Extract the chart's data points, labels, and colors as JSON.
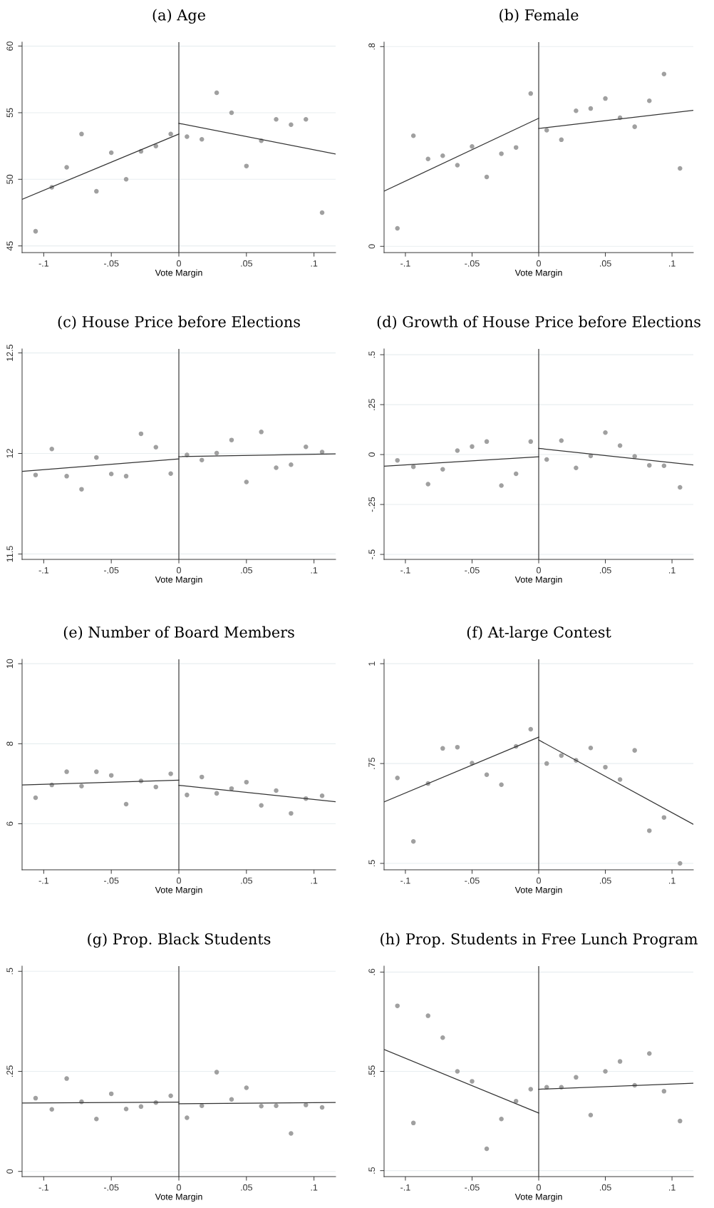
{
  "chart_data": [
    {
      "type": "scatter",
      "title": "(a) Age",
      "xlabel": "Vote Margin",
      "xlim": [
        -0.116,
        0.116
      ],
      "ylim": [
        44.5,
        60.3
      ],
      "xticks": [
        {
          "value": -0.1,
          "label": "-.1"
        },
        {
          "value": -0.05,
          "label": "-.05"
        },
        0,
        {
          "value": 0.05,
          "label": ".05"
        },
        {
          "value": 0.1,
          "label": ".1"
        }
      ],
      "yticks": [
        45,
        50,
        55,
        60
      ],
      "grid": "y",
      "ref_lines": [
        {
          "axis": "x",
          "value": 0,
          "label": null,
          "color": "#555555"
        }
      ],
      "series": [
        {
          "marker": "circle",
          "color": "#a0a0a0",
          "x": [
            -0.106,
            -0.094,
            -0.083,
            -0.072,
            -0.061,
            -0.05,
            -0.039,
            -0.028,
            -0.017,
            -0.006,
            0.006,
            0.017,
            0.028,
            0.039,
            0.05,
            0.061,
            0.072,
            0.083,
            0.094,
            0.106
          ],
          "values": [
            46.1,
            49.4,
            50.9,
            53.4,
            49.1,
            52.0,
            50.0,
            52.1,
            52.5,
            53.4,
            53.2,
            53.0,
            56.5,
            55.0,
            51.0,
            52.9,
            54.5,
            54.1,
            54.5,
            47.5
          ]
        },
        {
          "type": "line",
          "color": "#333333",
          "x": [
            -0.116,
            0
          ],
          "values": [
            48.5,
            53.4
          ]
        },
        {
          "type": "line",
          "color": "#333333",
          "x": [
            0,
            0.116
          ],
          "values": [
            54.2,
            51.9
          ]
        }
      ]
    },
    {
      "type": "scatter",
      "title": "(b) Female",
      "xlabel": "Vote Margin",
      "xlim": [
        -0.116,
        0.116
      ],
      "ylim": [
        -0.025,
        0.818
      ],
      "xticks": [
        {
          "value": -0.1,
          "label": "-.1"
        },
        {
          "value": -0.05,
          "label": "-.05"
        },
        0,
        {
          "value": 0.05,
          "label": ".05"
        },
        {
          "value": 0.1,
          "label": ".1"
        }
      ],
      "yticks": [
        0,
        {
          "value": 0.8,
          "label": ".8"
        }
      ],
      "grid": "y",
      "ref_lines": [
        {
          "axis": "x",
          "value": 0,
          "label": null,
          "color": "#555555"
        }
      ],
      "series": [
        {
          "marker": "circle",
          "color": "#a0a0a0",
          "x": [
            -0.106,
            -0.094,
            -0.083,
            -0.072,
            -0.061,
            -0.05,
            -0.039,
            -0.028,
            -0.017,
            -0.006,
            0.006,
            0.017,
            0.028,
            0.039,
            0.05,
            0.061,
            0.072,
            0.083,
            0.094,
            0.106
          ],
          "values": [
            0.072,
            0.443,
            0.35,
            0.363,
            0.325,
            0.4,
            0.278,
            0.371,
            0.396,
            0.612,
            0.465,
            0.427,
            0.543,
            0.552,
            0.592,
            0.515,
            0.479,
            0.583,
            0.69,
            0.312
          ]
        },
        {
          "type": "line",
          "color": "#333333",
          "x": [
            -0.116,
            0
          ],
          "values": [
            0.221,
            0.513
          ]
        },
        {
          "type": "line",
          "color": "#333333",
          "x": [
            0,
            0.116
          ],
          "values": [
            0.472,
            0.545
          ]
        }
      ]
    },
    {
      "type": "scatter",
      "title": "(c) House Price before Elections",
      "xlabel": "Vote Margin",
      "xlim": [
        -0.116,
        0.116
      ],
      "ylim": [
        11.473,
        12.52
      ],
      "xticks": [
        {
          "value": -0.1,
          "label": "-.1"
        },
        {
          "value": -0.05,
          "label": "-.05"
        },
        0,
        {
          "value": 0.05,
          "label": ".05"
        },
        {
          "value": 0.1,
          "label": ".1"
        }
      ],
      "yticks": [
        11.5,
        12,
        12.5
      ],
      "grid": "y",
      "ref_lines": [
        {
          "axis": "x",
          "value": 0,
          "label": null,
          "color": "#555555"
        }
      ],
      "series": [
        {
          "marker": "circle",
          "color": "#a0a0a0",
          "x": [
            -0.106,
            -0.094,
            -0.083,
            -0.072,
            -0.061,
            -0.05,
            -0.039,
            -0.028,
            -0.017,
            -0.006,
            0.006,
            0.017,
            0.028,
            0.039,
            0.05,
            0.061,
            0.072,
            0.083,
            0.094,
            0.106
          ],
          "values": [
            11.893,
            12.022,
            11.887,
            11.822,
            11.98,
            11.898,
            11.887,
            12.098,
            12.031,
            11.9,
            11.993,
            11.967,
            12.002,
            12.067,
            11.858,
            12.107,
            11.929,
            11.944,
            12.033,
            12.007
          ]
        },
        {
          "type": "line",
          "color": "#333333",
          "x": [
            -0.116,
            0
          ],
          "values": [
            11.911,
            11.973
          ]
        },
        {
          "type": "line",
          "color": "#333333",
          "x": [
            0,
            0.116
          ],
          "values": [
            11.984,
            11.998
          ]
        }
      ]
    },
    {
      "type": "scatter",
      "title": "(d) Growth of House Price before Elections",
      "xlabel": "Vote Margin",
      "xlim": [
        -0.116,
        0.116
      ],
      "ylim": [
        -0.525,
        0.529
      ],
      "xticks": [
        {
          "value": -0.1,
          "label": "-.1"
        },
        {
          "value": -0.05,
          "label": "-.05"
        },
        0,
        {
          "value": 0.05,
          "label": ".05"
        },
        {
          "value": 0.1,
          "label": ".1"
        }
      ],
      "yticks": [
        {
          "value": -0.5,
          "label": "-.5"
        },
        {
          "value": -0.25,
          "label": "-.25"
        },
        0,
        {
          "value": 0.25,
          "label": ".25"
        },
        {
          "value": 0.5,
          "label": ".5"
        }
      ],
      "grid": "y",
      "ref_lines": [
        {
          "axis": "x",
          "value": 0,
          "label": null,
          "color": "#555555"
        }
      ],
      "series": [
        {
          "marker": "circle",
          "color": "#a0a0a0",
          "x": [
            -0.106,
            -0.094,
            -0.083,
            -0.072,
            -0.061,
            -0.05,
            -0.039,
            -0.028,
            -0.017,
            -0.006,
            0.006,
            0.017,
            0.028,
            0.039,
            0.05,
            0.061,
            0.072,
            0.083,
            0.094,
            0.106
          ],
          "values": [
            -0.029,
            -0.061,
            -0.148,
            -0.074,
            0.02,
            0.04,
            0.065,
            -0.155,
            -0.096,
            0.065,
            -0.025,
            0.07,
            -0.067,
            -0.007,
            0.11,
            0.045,
            -0.009,
            -0.054,
            -0.056,
            -0.164
          ]
        },
        {
          "type": "line",
          "color": "#333333",
          "x": [
            -0.116,
            0
          ],
          "values": [
            -0.058,
            -0.011
          ]
        },
        {
          "type": "line",
          "color": "#333333",
          "x": [
            0,
            0.116
          ],
          "values": [
            0.031,
            -0.052
          ]
        }
      ]
    },
    {
      "type": "scatter",
      "title": "(e) Number of Board Members",
      "xlabel": "Vote Margin",
      "xlim": [
        -0.116,
        0.116
      ],
      "ylim": [
        4.85,
        10.11
      ],
      "xticks": [
        {
          "value": -0.1,
          "label": "-.1"
        },
        {
          "value": -0.05,
          "label": "-.05"
        },
        0,
        {
          "value": 0.05,
          "label": ".05"
        },
        {
          "value": 0.1,
          "label": ".1"
        }
      ],
      "yticks": [
        6,
        8,
        10
      ],
      "grid": "y",
      "ref_lines": [
        {
          "axis": "x",
          "value": 0,
          "label": null,
          "color": "#555555"
        }
      ],
      "series": [
        {
          "marker": "circle",
          "color": "#a0a0a0",
          "x": [
            -0.106,
            -0.094,
            -0.083,
            -0.072,
            -0.061,
            -0.05,
            -0.039,
            -0.028,
            -0.017,
            -0.006,
            0.006,
            0.017,
            0.028,
            0.039,
            0.05,
            0.061,
            0.072,
            0.083,
            0.094,
            0.106
          ],
          "values": [
            6.65,
            6.97,
            7.3,
            6.94,
            7.3,
            7.21,
            6.49,
            7.07,
            6.92,
            7.25,
            6.72,
            7.17,
            6.76,
            6.88,
            7.04,
            6.46,
            6.83,
            6.26,
            6.63,
            6.7
          ]
        },
        {
          "type": "line",
          "color": "#333333",
          "x": [
            -0.116,
            0
          ],
          "values": [
            6.97,
            7.09
          ]
        },
        {
          "type": "line",
          "color": "#333333",
          "x": [
            0,
            0.116
          ],
          "values": [
            6.96,
            6.55
          ]
        }
      ]
    },
    {
      "type": "scatter",
      "title": "(f) At-large Contest",
      "xlabel": "Vote Margin",
      "xlim": [
        -0.116,
        0.116
      ],
      "ylim": [
        0.484,
        1.011
      ],
      "xticks": [
        {
          "value": -0.1,
          "label": "-.1"
        },
        {
          "value": -0.05,
          "label": "-.05"
        },
        0,
        {
          "value": 0.05,
          "label": ".05"
        },
        {
          "value": 0.1,
          "label": ".1"
        }
      ],
      "yticks": [
        {
          "value": 0.5,
          "label": ".5"
        },
        {
          "value": 0.75,
          "label": ".75"
        },
        1
      ],
      "grid": "y",
      "ref_lines": [
        {
          "axis": "x",
          "value": 0,
          "label": null,
          "color": "#555555"
        }
      ],
      "series": [
        {
          "marker": "circle",
          "color": "#a0a0a0",
          "x": [
            -0.106,
            -0.094,
            -0.083,
            -0.072,
            -0.061,
            -0.05,
            -0.039,
            -0.028,
            -0.017,
            -0.006,
            0.006,
            0.017,
            0.028,
            0.039,
            0.05,
            0.061,
            0.072,
            0.083,
            0.094,
            0.106
          ],
          "values": [
            0.714,
            0.555,
            0.7,
            0.788,
            0.791,
            0.751,
            0.722,
            0.697,
            0.793,
            0.836,
            0.75,
            0.77,
            0.758,
            0.789,
            0.741,
            0.71,
            0.783,
            0.582,
            0.615,
            0.5
          ]
        },
        {
          "type": "line",
          "color": "#333333",
          "x": [
            -0.116,
            0
          ],
          "values": [
            0.654,
            0.816
          ]
        },
        {
          "type": "line",
          "color": "#333333",
          "x": [
            0,
            0.116
          ],
          "values": [
            0.809,
            0.598
          ]
        }
      ]
    },
    {
      "type": "scatter",
      "title": "(g) Prop. Black Students",
      "xlabel": "Vote Margin",
      "xlim": [
        -0.116,
        0.116
      ],
      "ylim": [
        -0.013,
        0.513
      ],
      "xticks": [
        {
          "value": -0.1,
          "label": "-.1"
        },
        {
          "value": -0.05,
          "label": "-.05"
        },
        0,
        {
          "value": 0.05,
          "label": ".05"
        },
        {
          "value": 0.1,
          "label": ".1"
        }
      ],
      "yticks": [
        0,
        {
          "value": 0.25,
          "label": ".25"
        },
        {
          "value": 0.5,
          "label": ".5"
        }
      ],
      "grid": "y",
      "ref_lines": [
        {
          "axis": "x",
          "value": 0,
          "label": null,
          "color": "#555555"
        }
      ],
      "series": [
        {
          "marker": "circle",
          "color": "#a0a0a0",
          "x": [
            -0.106,
            -0.094,
            -0.083,
            -0.072,
            -0.061,
            -0.05,
            -0.039,
            -0.028,
            -0.017,
            -0.006,
            0.006,
            0.017,
            0.028,
            0.039,
            0.05,
            0.061,
            0.072,
            0.083,
            0.094,
            0.106
          ],
          "values": [
            0.183,
            0.155,
            0.232,
            0.174,
            0.131,
            0.194,
            0.156,
            0.162,
            0.172,
            0.189,
            0.134,
            0.164,
            0.248,
            0.18,
            0.209,
            0.163,
            0.164,
            0.095,
            0.166,
            0.16
          ]
        },
        {
          "type": "line",
          "color": "#333333",
          "x": [
            -0.116,
            0
          ],
          "values": [
            0.171,
            0.173
          ]
        },
        {
          "type": "line",
          "color": "#333333",
          "x": [
            0,
            0.116
          ],
          "values": [
            0.169,
            0.172
          ]
        }
      ]
    },
    {
      "type": "scatter",
      "title": "(h) Prop. Students in Free Lunch Program",
      "xlabel": "Vote Margin",
      "xlim": [
        -0.116,
        0.116
      ],
      "ylim": [
        0.497,
        0.603
      ],
      "xticks": [
        {
          "value": -0.1,
          "label": "-.1"
        },
        {
          "value": -0.05,
          "label": "-.05"
        },
        0,
        {
          "value": 0.05,
          "label": ".05"
        },
        {
          "value": 0.1,
          "label": ".1"
        }
      ],
      "yticks": [
        {
          "value": 0.5,
          "label": ".5"
        },
        {
          "value": 0.55,
          "label": ".55"
        },
        {
          "value": 0.6,
          "label": ".6"
        }
      ],
      "grid": "y",
      "ref_lines": [
        {
          "axis": "x",
          "value": 0,
          "label": null,
          "color": "#555555"
        }
      ],
      "series": [
        {
          "marker": "circle",
          "color": "#a0a0a0",
          "x": [
            -0.106,
            -0.094,
            -0.083,
            -0.072,
            -0.061,
            -0.05,
            -0.039,
            -0.028,
            -0.017,
            -0.006,
            0.006,
            0.017,
            0.028,
            0.039,
            0.05,
            0.061,
            0.072,
            0.083,
            0.094,
            0.106
          ],
          "values": [
            0.583,
            0.524,
            0.578,
            0.567,
            0.55,
            0.545,
            0.511,
            0.526,
            0.535,
            0.541,
            0.542,
            0.542,
            0.547,
            0.528,
            0.55,
            0.555,
            0.543,
            0.559,
            0.54,
            0.525
          ]
        },
        {
          "type": "line",
          "color": "#333333",
          "x": [
            -0.116,
            0
          ],
          "values": [
            0.561,
            0.529
          ]
        },
        {
          "type": "line",
          "color": "#333333",
          "x": [
            0,
            0.116
          ],
          "values": [
            0.541,
            0.544
          ]
        }
      ]
    }
  ]
}
